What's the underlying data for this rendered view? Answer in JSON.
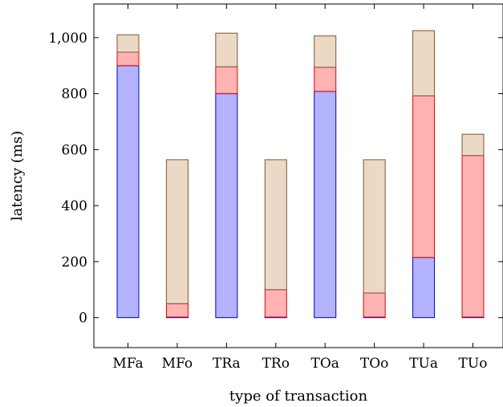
{
  "chart_data": {
    "type": "bar",
    "stacked": true,
    "categories": [
      "MFa",
      "MFo",
      "TRa",
      "TRo",
      "TOa",
      "TOo",
      "TUa",
      "TUo"
    ],
    "series": [
      {
        "values": [
          900,
          2,
          800,
          2,
          808,
          2,
          215,
          2
        ],
        "color": "#b3b3ff",
        "stroke": "#0000cc"
      },
      {
        "values": [
          48,
          48,
          96,
          98,
          86,
          86,
          577,
          577
        ],
        "color": "#ffb3b3",
        "stroke": "#e60000"
      },
      {
        "values": [
          62,
          514,
          120,
          464,
          112,
          476,
          233,
          76
        ],
        "color": "#ebd9c6",
        "stroke": "#805533"
      }
    ],
    "xlabel": "type of transaction",
    "ylabel": "latency (ms)",
    "ylim": [
      -107,
      1120
    ],
    "yticks": [
      0,
      200,
      400,
      600,
      800,
      1000
    ],
    "ytick_labels": [
      "0",
      "200",
      "400",
      "600",
      "800",
      "1,000"
    ],
    "grid": false,
    "legend": "none"
  }
}
